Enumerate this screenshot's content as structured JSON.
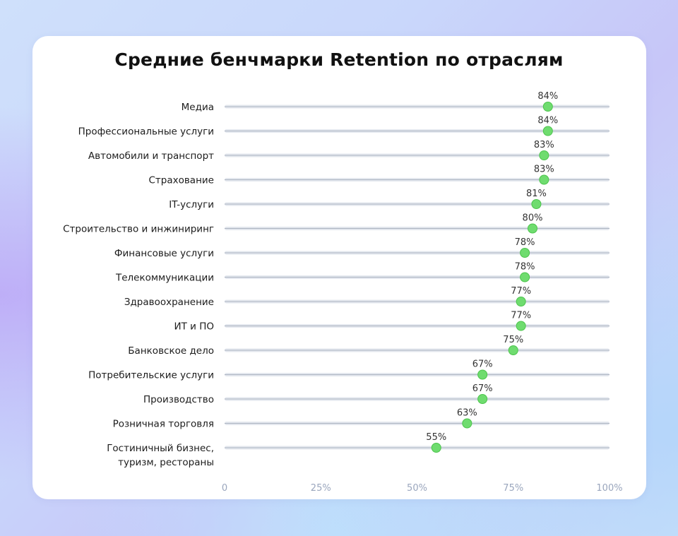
{
  "chart_data": {
    "type": "scatter",
    "title": "Средние бенчмарки Retention по отраслям",
    "categories": [
      [
        "Медиа"
      ],
      [
        "Профессиональные услуги"
      ],
      [
        "Автомобили и транспорт"
      ],
      [
        "Страхование"
      ],
      [
        "IT-услуги"
      ],
      [
        "Строительство и инжиниринг"
      ],
      [
        "Финансовые услуги"
      ],
      [
        "Телекоммуникации"
      ],
      [
        "Здравоохранение"
      ],
      [
        "ИТ и ПО"
      ],
      [
        "Банковское дело"
      ],
      [
        "Потребительские услуги"
      ],
      [
        "Производство"
      ],
      [
        "Розничная торговля"
      ],
      [
        "Гостиничный бизнес,",
        "туризм, рестораны"
      ]
    ],
    "values": [
      84,
      84,
      83,
      83,
      81,
      80,
      78,
      78,
      77,
      77,
      75,
      67,
      67,
      63,
      55
    ],
    "value_labels": [
      "84%",
      "84%",
      "83%",
      "83%",
      "81%",
      "80%",
      "78%",
      "78%",
      "77%",
      "77%",
      "75%",
      "67%",
      "67%",
      "63%",
      "55%"
    ],
    "xlim": [
      0,
      100
    ],
    "x_ticks": [
      0,
      25,
      50,
      75,
      100
    ],
    "x_tick_labels": [
      "0",
      "25%",
      "50%",
      "75%",
      "100%"
    ],
    "colors": {
      "point": "#6fdc6f",
      "point_stroke": "#4cc44c",
      "track": "#e3e7ee",
      "track_line": "#9aa3b2",
      "category_text": "#1c1c1c",
      "value_text": "#333333",
      "tick_text": "#9aa6bd"
    }
  }
}
